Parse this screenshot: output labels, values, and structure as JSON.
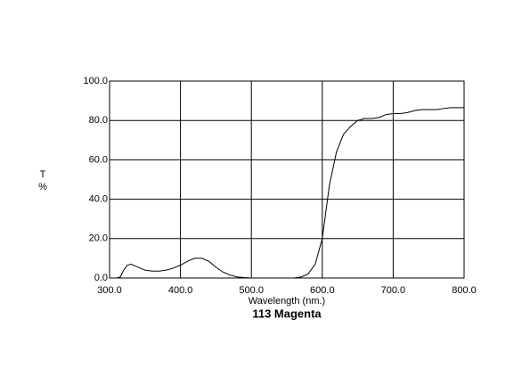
{
  "chart_data": {
    "type": "line",
    "title": "113 Magenta",
    "x_label": "Wavelength (nm.)",
    "y_label": [
      "T",
      "%"
    ],
    "x": [
      300,
      310,
      315,
      320,
      325,
      330,
      340,
      350,
      360,
      370,
      380,
      390,
      400,
      410,
      420,
      430,
      440,
      450,
      460,
      470,
      480,
      490,
      500,
      510,
      560,
      570,
      580,
      590,
      600,
      610,
      620,
      630,
      640,
      650,
      660,
      670,
      680,
      690,
      700,
      710,
      720,
      730,
      740,
      750,
      760,
      770,
      780,
      790,
      800
    ],
    "values": [
      0,
      0,
      0.5,
      4,
      6.5,
      7,
      5.5,
      4,
      3.5,
      3.5,
      4,
      5,
      6.5,
      8.5,
      10,
      10,
      8.5,
      5.5,
      3,
      1.5,
      0.5,
      0.2,
      0,
      0,
      0,
      0.5,
      2,
      7,
      20,
      47,
      64,
      73,
      77,
      80,
      81,
      81,
      81.5,
      83,
      83.5,
      83.5,
      84,
      85,
      85.5,
      85.5,
      85.5,
      86,
      86.5,
      86.5,
      86.5
    ],
    "color": "#000000",
    "xlim": [
      300,
      800
    ],
    "ylim": [
      0,
      100
    ],
    "xticks": [
      {
        "value": 300,
        "label": "300.0"
      },
      {
        "value": 400,
        "label": "400.0"
      },
      {
        "value": 500,
        "label": "500.0"
      },
      {
        "value": 600,
        "label": "600.0"
      },
      {
        "value": 700,
        "label": "700.0"
      },
      {
        "value": 800,
        "label": "800.0"
      }
    ],
    "yticks": [
      {
        "value": 0,
        "label": "0.0"
      },
      {
        "value": 20,
        "label": "20.0"
      },
      {
        "value": 40,
        "label": "40.0"
      },
      {
        "value": 60,
        "label": "60.0"
      },
      {
        "value": 80,
        "label": "80.0"
      },
      {
        "value": 100,
        "label": "100.0"
      }
    ],
    "grid": true
  }
}
